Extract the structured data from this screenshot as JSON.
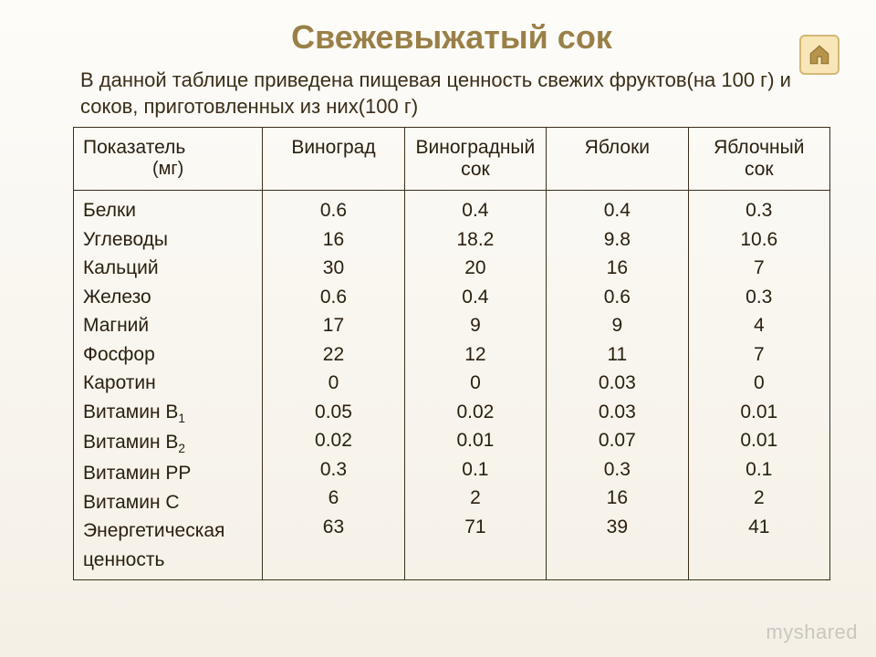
{
  "title": "Свежевыжатый сок",
  "intro": "В данной таблице приведена пищевая ценность свежих фруктов(на 100 г)  и соков, приготовленных из них(100 г)",
  "home": {
    "aria": "Главная"
  },
  "watermark": "myshared",
  "table": {
    "header": {
      "metric": "Показатель",
      "metric_sub": "(мг)",
      "col1": "Виноград",
      "col2": "Виноградный сок",
      "col3": "Яблоки",
      "col4": "Яблочный сок"
    },
    "labels": [
      "Белки",
      "Углеводы",
      "Кальций",
      "Железо",
      "Магний",
      "Фосфор",
      "Каротин",
      "Витамин В",
      "Витамин В",
      "Витамин РР",
      "Витамин С",
      "Энергетическая ценность"
    ],
    "label_subs": [
      "",
      "",
      "",
      "",
      "",
      "",
      "",
      "1",
      "2",
      "",
      "",
      ""
    ],
    "col1": [
      "0.6",
      "16",
      "30",
      "0.6",
      "17",
      "22",
      "0",
      "0.05",
      "0.02",
      "0.3",
      "6",
      "63"
    ],
    "col2": [
      "0.4",
      "18.2",
      "20",
      "0.4",
      "9",
      "12",
      "0",
      "0.02",
      "0.01",
      "0.1",
      "2",
      "71"
    ],
    "col3": [
      "0.4",
      "9.8",
      "16",
      "0.6",
      "9",
      "11",
      "0.03",
      "0.03",
      "0.07",
      "0.3",
      "16",
      "39"
    ],
    "col4": [
      "0.3",
      "10.6",
      "7",
      "0.3",
      "4",
      "7",
      "0",
      "0.01",
      "0.01",
      "0.1",
      "2",
      "41"
    ]
  },
  "style": {
    "title_color": "#9a8048",
    "border_color": "#3a2e18",
    "bg_from": "#fdfcf9",
    "bg_to": "#f5f0e6",
    "title_fontsize": 36,
    "body_fontsize": 22,
    "cell_fontsize": 21,
    "line_height": 1.5
  }
}
